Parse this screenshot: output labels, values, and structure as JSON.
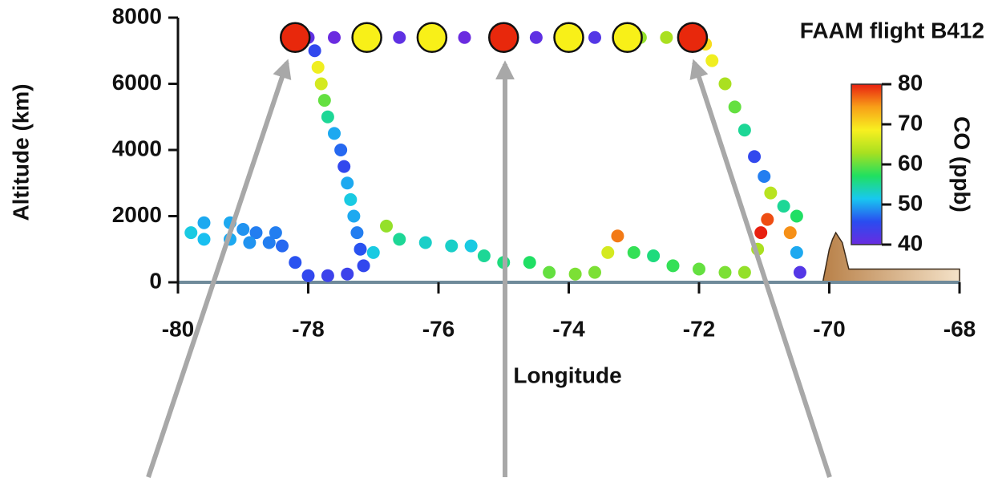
{
  "chart_data": {
    "type": "scatter",
    "title": "FAAM flight B412",
    "xlabel": "Longitude",
    "ylabel": "Altitude (km)",
    "xlim": [
      -80,
      -68
    ],
    "xticks": [
      -80,
      -78,
      -76,
      -74,
      -72,
      -70,
      -68
    ],
    "ylim": [
      0,
      8000
    ],
    "yticks": [
      0,
      2000,
      4000,
      6000,
      8000
    ],
    "colorbar": {
      "label": "CO (ppb)",
      "clim": [
        40,
        80
      ],
      "cticks": [
        40,
        50,
        60,
        70,
        80
      ],
      "colormap": [
        "#6a2be0",
        "#2a4cf0",
        "#18c8f0",
        "#20e060",
        "#a8e020",
        "#f8f020",
        "#f8a018",
        "#e82010"
      ]
    },
    "series": [
      {
        "x": [
          -79.8,
          -79.6,
          -79.2,
          -79.0,
          -78.8,
          -78.5,
          -78.4,
          -78.2,
          -78.0,
          -77.7,
          -77.4,
          -79.6,
          -79.2,
          -78.9,
          -78.6,
          -77.9,
          -77.85,
          -77.8,
          -77.75,
          -77.7,
          -77.6,
          -77.5,
          -77.45,
          -77.4,
          -77.35,
          -77.3,
          -77.25,
          -77.2,
          -77.15,
          -77.0,
          -76.8,
          -76.6,
          -76.2,
          -75.8,
          -75.5,
          -75.3,
          -75.0,
          -74.6,
          -74.3,
          -73.9,
          -73.6,
          -73.4,
          -73.25,
          -73.0,
          -72.7,
          -72.4,
          -72.0,
          -71.6,
          -71.3,
          -71.1,
          -71.05,
          -70.95,
          -70.6,
          -70.5,
          -70.45,
          -71.9,
          -71.8,
          -71.6,
          -71.45,
          -71.3,
          -71.15,
          -71.0,
          -70.9,
          -70.7,
          -70.5,
          -78.0,
          -77.6,
          -76.6,
          -75.6,
          -74.5,
          -73.6,
          -72.9,
          -72.5
        ],
        "values": [
          1500,
          1800,
          1800,
          1600,
          1500,
          1500,
          1100,
          600,
          200,
          200,
          250,
          1300,
          1300,
          1200,
          1200,
          7000,
          6500,
          6000,
          5500,
          5000,
          4500,
          4000,
          3500,
          3000,
          2500,
          2000,
          1500,
          1000,
          500,
          900,
          1700,
          1300,
          1200,
          1100,
          1100,
          800,
          600,
          600,
          300,
          250,
          300,
          900,
          1400,
          900,
          800,
          500,
          400,
          300,
          300,
          1000,
          1500,
          1900,
          1500,
          900,
          300,
          7200,
          6700,
          6000,
          5300,
          4600,
          3800,
          3200,
          2700,
          2300,
          2000,
          7400,
          7400,
          7400,
          7400,
          7400,
          7400,
          7400,
          7400
        ],
        "co": [
          52,
          50,
          50,
          49,
          48,
          48,
          47,
          46,
          45,
          44,
          44,
          51,
          50,
          49,
          48,
          45,
          68,
          66,
          60,
          55,
          50,
          47,
          45,
          50,
          52,
          50,
          48,
          46,
          45,
          52,
          62,
          55,
          53,
          53,
          52,
          55,
          56,
          57,
          60,
          61,
          61,
          66,
          76,
          58,
          56,
          58,
          60,
          61,
          62,
          63,
          80,
          78,
          75,
          50,
          42,
          70,
          68,
          63,
          60,
          55,
          45,
          48,
          64,
          55,
          57,
          41,
          40,
          41,
          40,
          41,
          42,
          62,
          63
        ]
      },
      {
        "x": [
          -78.2,
          -77.1,
          -76.1,
          -75,
          -74,
          -73.1,
          -72.1
        ],
        "values": [
          7400,
          7400,
          7400,
          7400,
          7400,
          7400,
          7400
        ],
        "colors": [
          "#e8280c",
          "#f8f018",
          "#f8f018",
          "#e8280c",
          "#f8f018",
          "#f8f018",
          "#e8280c"
        ]
      }
    ],
    "terrain": {
      "x": [
        -70.1,
        -70.0,
        -69.95,
        -69.9,
        -69.8,
        -69.7,
        -68
      ],
      "values": [
        0,
        1000,
        1300,
        1500,
        1200,
        400,
        400
      ],
      "color": "#c8955a"
    }
  }
}
